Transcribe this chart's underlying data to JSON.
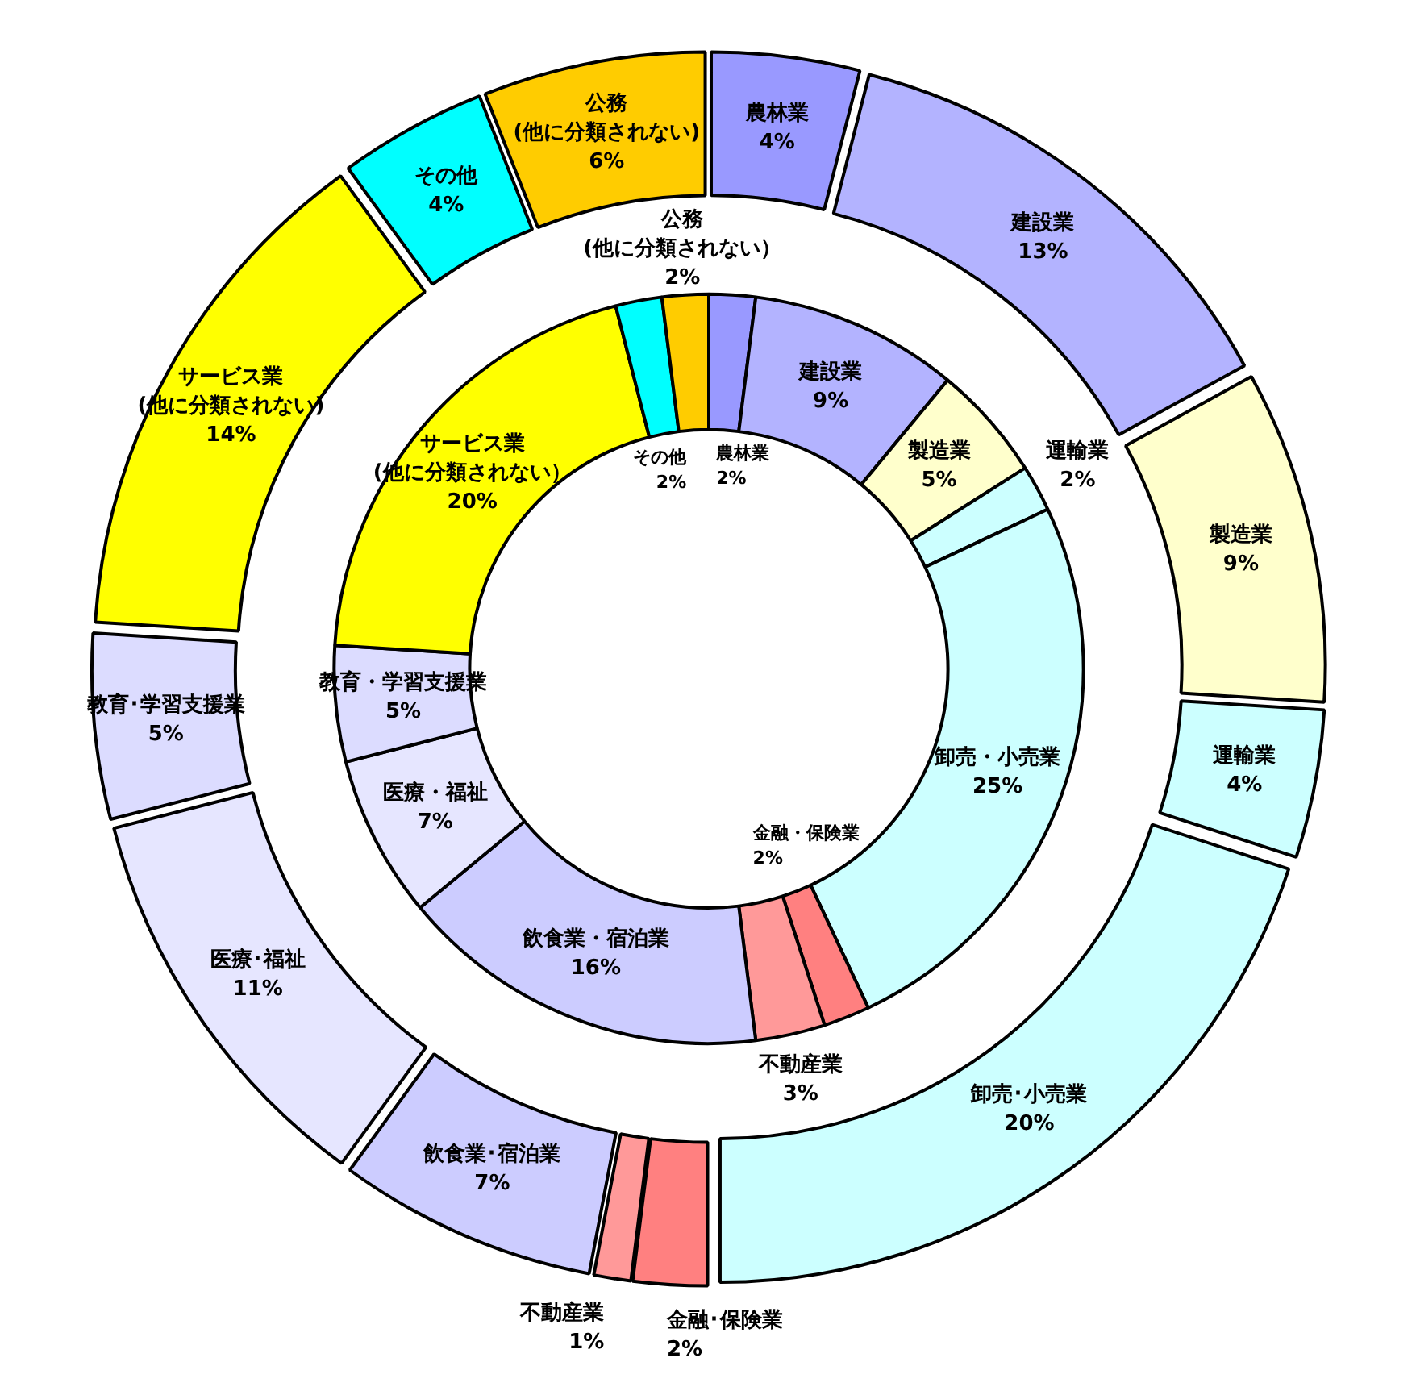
{
  "chart_data": {
    "type": "donut",
    "categories": [
      "農林業",
      "建設業",
      "製造業",
      "運輸業",
      "卸売・小売業",
      "金融・保険業",
      "不動産業",
      "飲食業・宿泊業",
      "医療・福祉",
      "教育・学習支援業",
      "サービス業\n(他に分類されない）",
      "その他",
      "公務\n(他に分類されない）"
    ],
    "series": [
      {
        "values": [
          2,
          9,
          5,
          2,
          25,
          2,
          3,
          16,
          7,
          5,
          20,
          2,
          2
        ],
        "colors": [
          "#9999ff",
          "#b3b3ff",
          "#ffffcc",
          "#ccffff",
          "#ccffff",
          "#ff8080",
          "#ff9999",
          "#ccccff",
          "#e6e6ff",
          "#dcdcff",
          "#ffff00",
          "#00ffff",
          "#ffcc00"
        ],
        "value_labels": [
          "2%",
          "9%",
          "5%",
          "2%",
          "25%",
          "2%",
          "3%",
          "16%",
          "7%",
          "5%",
          "20%",
          "2%",
          "2%"
        ]
      },
      {
        "values": [
          4,
          13,
          9,
          4,
          20,
          2,
          1,
          7,
          11,
          5,
          14,
          4,
          6
        ],
        "colors": [
          "#9999ff",
          "#b3b3ff",
          "#ffffcc",
          "#ccffff",
          "#ccffff",
          "#ff8080",
          "#ff9999",
          "#ccccff",
          "#e6e6ff",
          "#dcdcff",
          "#ffff00",
          "#00ffff",
          "#ffcc00"
        ],
        "value_labels": [
          "農林業\n4%",
          "建設業\n13%",
          "製造業\n9%",
          "運輸業\n4%",
          "卸売･小売業\n20%",
          "金融･保険業\n2%",
          "不動産業\n1%",
          "飲食業･宿泊業\n7%",
          "医療･福祉\n11%",
          "教育･学習支援業\n5%",
          "サービス業\n(他に分類されない)\n14%",
          "その他\n4%",
          "公務\n(他に分類されない)\n6%"
        ]
      }
    ]
  }
}
